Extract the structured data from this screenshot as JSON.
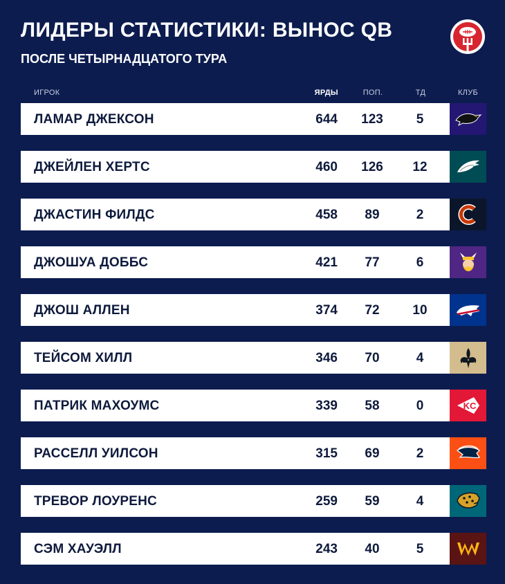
{
  "header": {
    "title": "ЛИДЕРЫ СТАТИСТИКИ: ВЫНОС QB",
    "subtitle": "ПОСЛЕ ЧЕТЫРНАДЦАТОГО ТУРА",
    "logo_icon": "football-on-fork-icon"
  },
  "columns": {
    "player": "ИГРОК",
    "yards": "ЯРДЫ",
    "attempts": "ПОП.",
    "td": "ТД",
    "club": "КЛУБ"
  },
  "rows": [
    {
      "player": "ЛАМАР ДЖЕКСОН",
      "yards": "644",
      "attempts": "123",
      "td": "5",
      "club_icon": "ravens-logo-icon",
      "club_color": "#241773"
    },
    {
      "player": "ДЖЕЙЛЕН ХЕРТС",
      "yards": "460",
      "attempts": "126",
      "td": "12",
      "club_icon": "eagles-logo-icon",
      "club_color": "#004c54"
    },
    {
      "player": "ДЖАСТИН ФИЛДС",
      "yards": "458",
      "attempts": "89",
      "td": "2",
      "club_icon": "bears-logo-icon",
      "club_color": "#0b162a"
    },
    {
      "player": "ДЖОШУА ДОББС",
      "yards": "421",
      "attempts": "77",
      "td": "6",
      "club_icon": "vikings-logo-icon",
      "club_color": "#4f2683"
    },
    {
      "player": "ДЖОШ АЛЛЕН",
      "yards": "374",
      "attempts": "72",
      "td": "10",
      "club_icon": "bills-logo-icon",
      "club_color": "#00338d"
    },
    {
      "player": "ТЕЙСОМ ХИЛЛ",
      "yards": "346",
      "attempts": "70",
      "td": "4",
      "club_icon": "saints-logo-icon",
      "club_color": "#d3bc8d"
    },
    {
      "player": "ПАТРИК МАХОУМС",
      "yards": "339",
      "attempts": "58",
      "td": "0",
      "club_icon": "chiefs-logo-icon",
      "club_color": "#e31837"
    },
    {
      "player": "РАССЕЛЛ УИЛСОН",
      "yards": "315",
      "attempts": "69",
      "td": "2",
      "club_icon": "broncos-logo-icon",
      "club_color": "#fb4f14"
    },
    {
      "player": "ТРЕВОР ЛОУРЕНС",
      "yards": "259",
      "attempts": "59",
      "td": "4",
      "club_icon": "jaguars-logo-icon",
      "club_color": "#006778"
    },
    {
      "player": "СЭМ ХАУЭЛЛ",
      "yards": "243",
      "attempts": "40",
      "td": "5",
      "club_icon": "commanders-logo-icon",
      "club_color": "#5a1414"
    }
  ],
  "colors": {
    "background": "#0c1c4f",
    "row_background": "#ffffff",
    "row_text": "#0e1a3c"
  }
}
